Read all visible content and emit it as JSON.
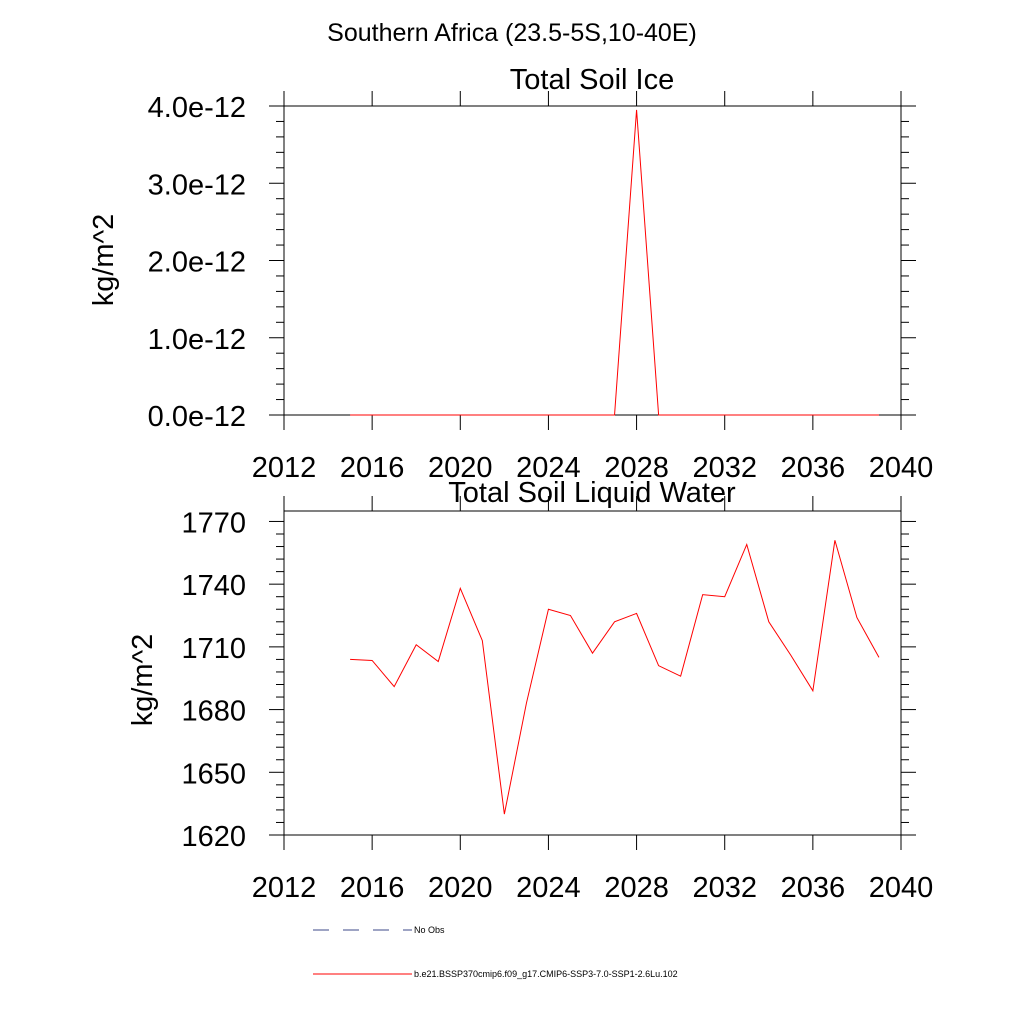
{
  "figure": {
    "title": "Southern Africa (23.5-5S,10-40E)"
  },
  "chart_data": [
    {
      "type": "line",
      "title": "Total Soil Ice",
      "xlabel": "",
      "ylabel": "kg/m^2",
      "xlim": [
        2012,
        2040
      ],
      "ylim": [
        0.0,
        4e-12
      ],
      "xticks": [
        2012,
        2016,
        2020,
        2024,
        2028,
        2032,
        2036,
        2040
      ],
      "xtick_labels": [
        "2012",
        "2016",
        "2020",
        "2024",
        "2028",
        "2032",
        "2036",
        "2040"
      ],
      "yticks": [
        0.0,
        1e-12,
        2e-12,
        3e-12,
        4e-12
      ],
      "ytick_labels": [
        "0.0e-12",
        "1.0e-12",
        "2.0e-12",
        "3.0e-12",
        "4.0e-12"
      ],
      "grid": false,
      "series": [
        {
          "name": "b.e21.BSSP370cmip6.f09_g17.CMIP6-SSP3-7.0-SSP1-2.6Lu.102",
          "color": "#ff0000",
          "x": [
            2015,
            2016,
            2017,
            2018,
            2019,
            2020,
            2021,
            2022,
            2023,
            2024,
            2025,
            2026,
            2027,
            2028,
            2029,
            2030,
            2031,
            2032,
            2033,
            2034,
            2035,
            2036,
            2037,
            2038,
            2039
          ],
          "values": [
            0,
            0,
            0,
            0,
            0,
            0,
            0,
            0,
            0,
            0,
            0,
            0,
            0,
            3.95e-12,
            0,
            0,
            0,
            0,
            0,
            0,
            0,
            0,
            0,
            0,
            0
          ]
        }
      ]
    },
    {
      "type": "line",
      "title": "Total Soil Liquid Water",
      "xlabel": "",
      "ylabel": "kg/m^2",
      "xlim": [
        2012,
        2040
      ],
      "ylim": [
        1620,
        1775
      ],
      "xticks": [
        2012,
        2016,
        2020,
        2024,
        2028,
        2032,
        2036,
        2040
      ],
      "xtick_labels": [
        "2012",
        "2016",
        "2020",
        "2024",
        "2028",
        "2032",
        "2036",
        "2040"
      ],
      "yticks": [
        1620,
        1650,
        1680,
        1710,
        1740,
        1770
      ],
      "ytick_labels": [
        "1620",
        "1650",
        "1680",
        "1710",
        "1740",
        "1770"
      ],
      "grid": false,
      "series": [
        {
          "name": "b.e21.BSSP370cmip6.f09_g17.CMIP6-SSP3-7.0-SSP1-2.6Lu.102",
          "color": "#ff0000",
          "x": [
            2015,
            2016,
            2017,
            2018,
            2019,
            2020,
            2021,
            2022,
            2023,
            2024,
            2025,
            2026,
            2027,
            2028,
            2029,
            2030,
            2031,
            2032,
            2033,
            2034,
            2035,
            2036,
            2037,
            2038,
            2039
          ],
          "values": [
            1704,
            1703.5,
            1691,
            1711,
            1703,
            1738,
            1713,
            1630,
            1683,
            1728,
            1725,
            1707,
            1722,
            1726,
            1701,
            1696,
            1735,
            1734,
            1759,
            1722,
            1706,
            1689,
            1761,
            1724,
            1705
          ]
        }
      ]
    }
  ],
  "legend": {
    "placement": "bottom",
    "items": [
      {
        "label": "No Obs",
        "color": "#3c4a8a",
        "style": "dashed"
      },
      {
        "label": "b.e21.BSSP370cmip6.f09_g17.CMIP6-SSP3-7.0-SSP1-2.6Lu.102",
        "color": "#ff0000",
        "style": "solid"
      }
    ]
  }
}
